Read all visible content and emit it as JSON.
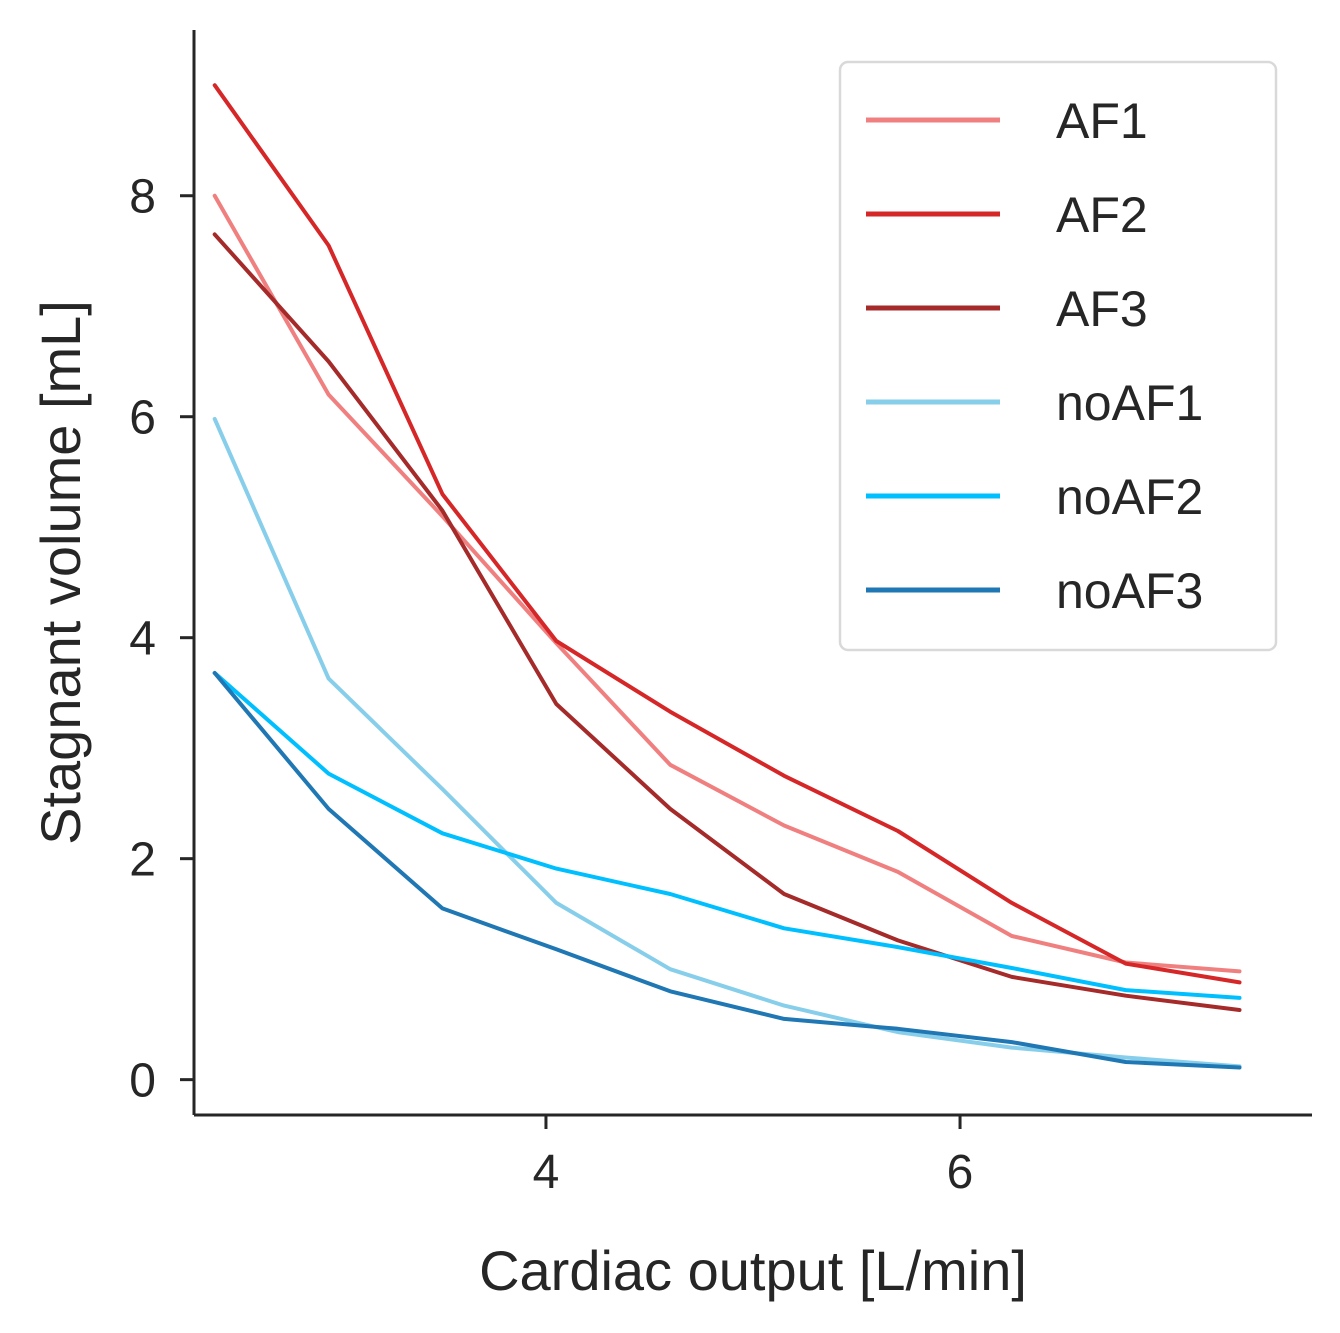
{
  "chart_data": {
    "type": "line",
    "title": "",
    "xlabel": "Cardiac output [L/min]",
    "ylabel": "Stagnant volume [mL]",
    "xlim": [
      2.3,
      7.7
    ],
    "ylim": [
      -0.32,
      9.5
    ],
    "xticks": [
      4,
      6
    ],
    "yticks": [
      0,
      2,
      4,
      6,
      8
    ],
    "grid": false,
    "legend_position": "top-right",
    "x": [
      2.4,
      2.95,
      3.5,
      4.05,
      4.6,
      5.15,
      5.7,
      6.25,
      6.8,
      7.35
    ],
    "series": [
      {
        "name": "AF1",
        "color": "#f08080",
        "values": [
          8.0,
          6.2,
          5.1,
          3.95,
          2.85,
          2.3,
          1.88,
          1.3,
          1.06,
          0.98
        ]
      },
      {
        "name": "AF2",
        "color": "#d62728",
        "values": [
          9.0,
          7.55,
          5.3,
          3.97,
          3.33,
          2.75,
          2.25,
          1.6,
          1.05,
          0.88
        ]
      },
      {
        "name": "AF3",
        "color": "#a52a2a",
        "values": [
          7.65,
          6.5,
          5.15,
          3.4,
          2.45,
          1.68,
          1.26,
          0.93,
          0.76,
          0.63
        ]
      },
      {
        "name": "noAF1",
        "color": "#87ceeb",
        "values": [
          5.98,
          3.63,
          2.63,
          1.6,
          1.0,
          0.67,
          0.43,
          0.29,
          0.2,
          0.12
        ]
      },
      {
        "name": "noAF2",
        "color": "#00bfff",
        "values": [
          3.68,
          2.77,
          2.23,
          1.91,
          1.68,
          1.37,
          1.2,
          1.01,
          0.81,
          0.74
        ]
      },
      {
        "name": "noAF3",
        "color": "#1f77b4",
        "values": [
          3.68,
          2.45,
          1.55,
          1.18,
          0.8,
          0.55,
          0.46,
          0.34,
          0.16,
          0.11
        ]
      }
    ]
  }
}
